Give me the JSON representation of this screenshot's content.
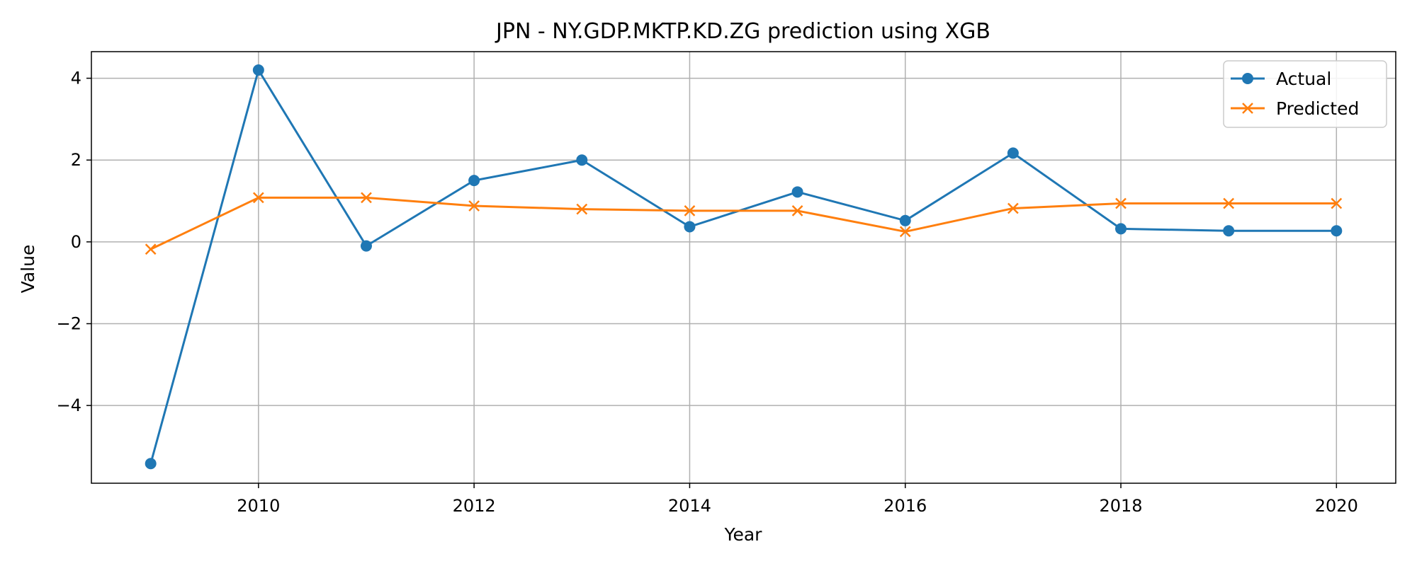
{
  "chart_data": {
    "type": "line",
    "title": "JPN - NY.GDP.MKTP.KD.ZG prediction using XGB",
    "xlabel": "Year",
    "ylabel": "Value",
    "xlim": [
      2008.45,
      2020.55
    ],
    "ylim": [
      -5.9,
      4.65
    ],
    "x_ticks": [
      2010,
      2012,
      2014,
      2016,
      2018,
      2020
    ],
    "y_ticks": [
      -4,
      -2,
      0,
      2,
      4
    ],
    "grid": true,
    "legend_position": "top-right",
    "x": [
      2009,
      2010,
      2011,
      2012,
      2013,
      2014,
      2015,
      2016,
      2017,
      2018,
      2019,
      2020
    ],
    "series": [
      {
        "name": "Actual",
        "marker": "circle",
        "color": "#1f77b4",
        "values": [
          -5.42,
          4.2,
          -0.1,
          1.5,
          2.0,
          0.37,
          1.22,
          0.52,
          2.17,
          0.32,
          0.27,
          0.27
        ]
      },
      {
        "name": "Predicted",
        "marker": "x",
        "color": "#ff7f0e",
        "values": [
          -0.18,
          1.08,
          1.08,
          0.88,
          0.8,
          0.76,
          0.76,
          0.25,
          0.82,
          0.94,
          0.94,
          0.94
        ]
      }
    ]
  }
}
